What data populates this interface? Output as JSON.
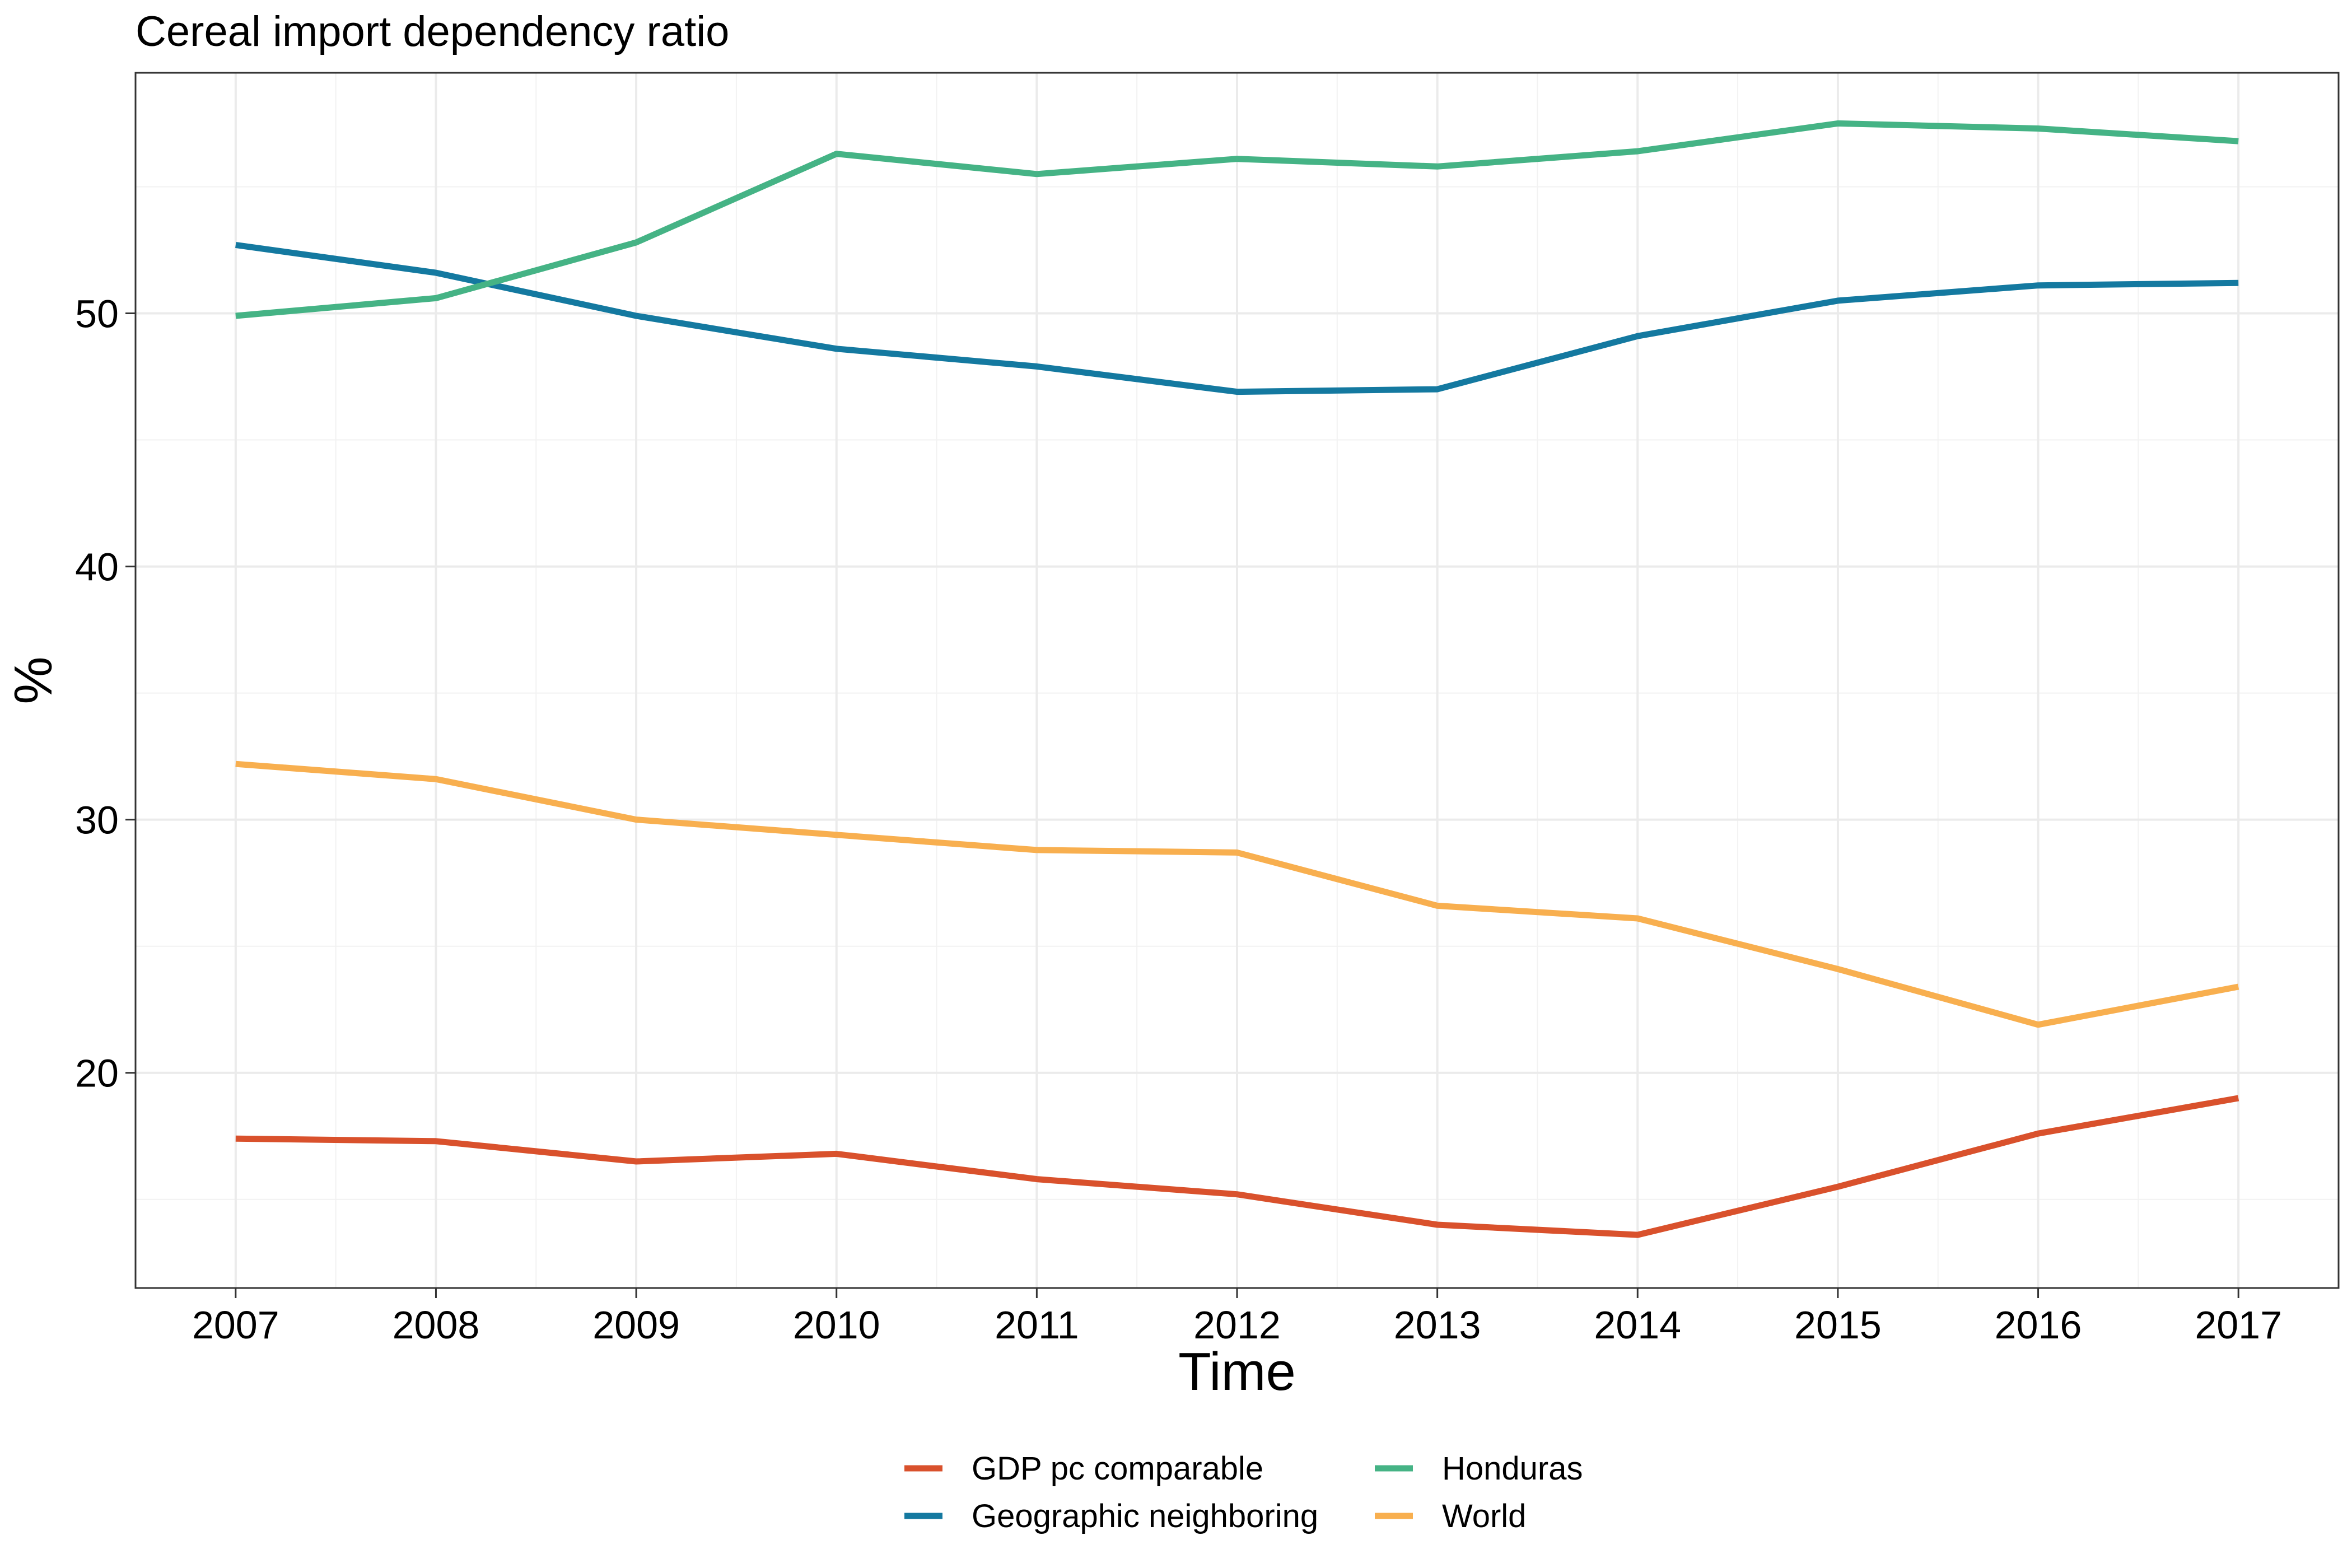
{
  "chart_data": {
    "type": "line",
    "title": "Cereal import dependency ratio",
    "xlabel": "Time",
    "ylabel": "%",
    "x": [
      2007,
      2008,
      2009,
      2010,
      2011,
      2012,
      2013,
      2014,
      2015,
      2016,
      2017
    ],
    "xlim": [
      2006.5,
      2017.5
    ],
    "ylim": [
      11.5,
      59.5
    ],
    "yticks": [
      20,
      30,
      40,
      50
    ],
    "grid": true,
    "legend_position": "bottom",
    "series": [
      {
        "name": "GDP pc comparable",
        "color": "#D9512C",
        "values": [
          17.4,
          17.3,
          16.5,
          16.8,
          15.8,
          15.2,
          14.0,
          13.6,
          15.5,
          17.6,
          19.0
        ]
      },
      {
        "name": "Geographic neighboring",
        "color": "#1479A0",
        "values": [
          52.7,
          51.6,
          49.9,
          48.6,
          47.9,
          46.9,
          47.0,
          49.1,
          50.5,
          51.1,
          51.2
        ]
      },
      {
        "name": "Honduras",
        "color": "#45B385",
        "values": [
          49.9,
          50.6,
          52.8,
          56.3,
          55.5,
          56.1,
          55.8,
          56.4,
          57.5,
          57.3,
          56.8
        ]
      },
      {
        "name": "World",
        "color": "#F8AF4F",
        "values": [
          32.2,
          31.6,
          30.0,
          29.4,
          28.8,
          28.7,
          26.6,
          26.1,
          24.1,
          21.9,
          23.4
        ]
      }
    ]
  }
}
